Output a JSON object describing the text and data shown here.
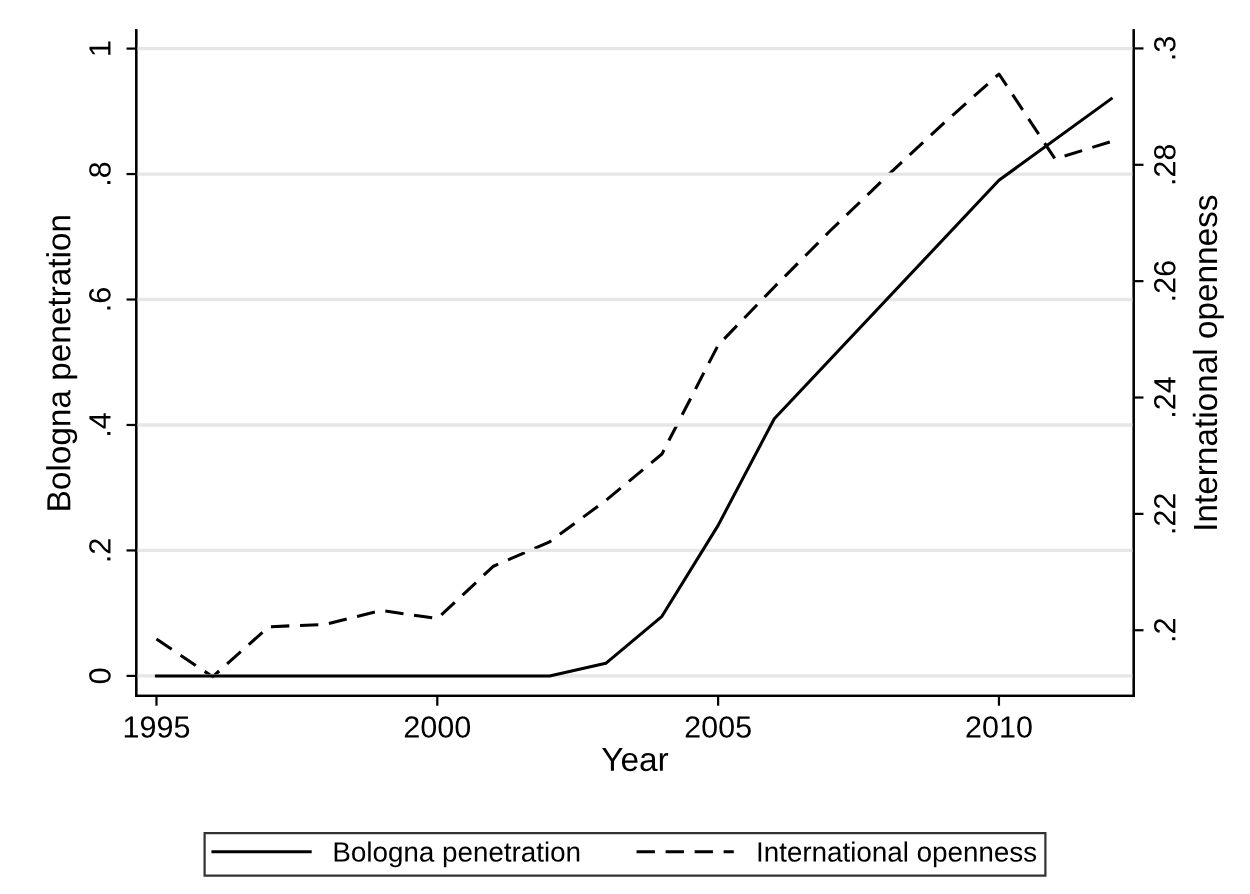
{
  "chart_data": {
    "type": "line",
    "xlabel": "Year",
    "ylabel": "Bologna penetration",
    "y2label": "International openness",
    "x": [
      1995,
      1996,
      1997,
      1998,
      1999,
      2000,
      2001,
      2002,
      2003,
      2004,
      2005,
      2006,
      2007,
      2008,
      2009,
      2010,
      2011,
      2012
    ],
    "series": [
      {
        "name": "Bologna penetration",
        "color": "#000000",
        "line_style": "solid",
        "values": [
          0,
          0,
          0,
          0,
          0,
          0,
          0,
          0,
          0.02,
          0.095,
          0.24,
          0.41,
          null,
          null,
          null,
          0.79,
          null,
          0.92
        ]
      },
      {
        "name": "International openness",
        "color": "#000000",
        "line_style": "dashed",
        "axis": "y2",
        "values": [
          0.1985,
          0.192,
          0.2006,
          0.201,
          0.2034,
          0.202,
          0.211,
          0.2152,
          0.2223,
          0.2303,
          0.249,
          0.259,
          0.2687,
          0.278,
          0.287,
          0.2956,
          0.281,
          0.284
        ]
      }
    ],
    "xlim": [
      1994.64,
      2012.4
    ],
    "xticks": [
      1995,
      2000,
      2005,
      2010
    ],
    "ylim": [
      -0.032,
      1.029
    ],
    "yticks": [
      0,
      {
        "value": 0.2,
        "label": ".2"
      },
      {
        "value": 0.4,
        "label": ".4"
      },
      {
        "value": 0.6,
        "label": ".6"
      },
      {
        "value": 0.8,
        "label": ".8"
      },
      1
    ],
    "y2lim": [
      0.1887,
      0.3031
    ],
    "y2ticks": [
      {
        "value": 0.2,
        "label": ".2"
      },
      {
        "value": 0.22,
        "label": ".22"
      },
      {
        "value": 0.24,
        "label": ".24"
      },
      {
        "value": 0.26,
        "label": ".26"
      },
      {
        "value": 0.28,
        "label": ".28"
      },
      {
        "value": 0.3,
        "label": ".3"
      }
    ],
    "grid": "y",
    "legend": "bottom",
    "marker": "none"
  }
}
